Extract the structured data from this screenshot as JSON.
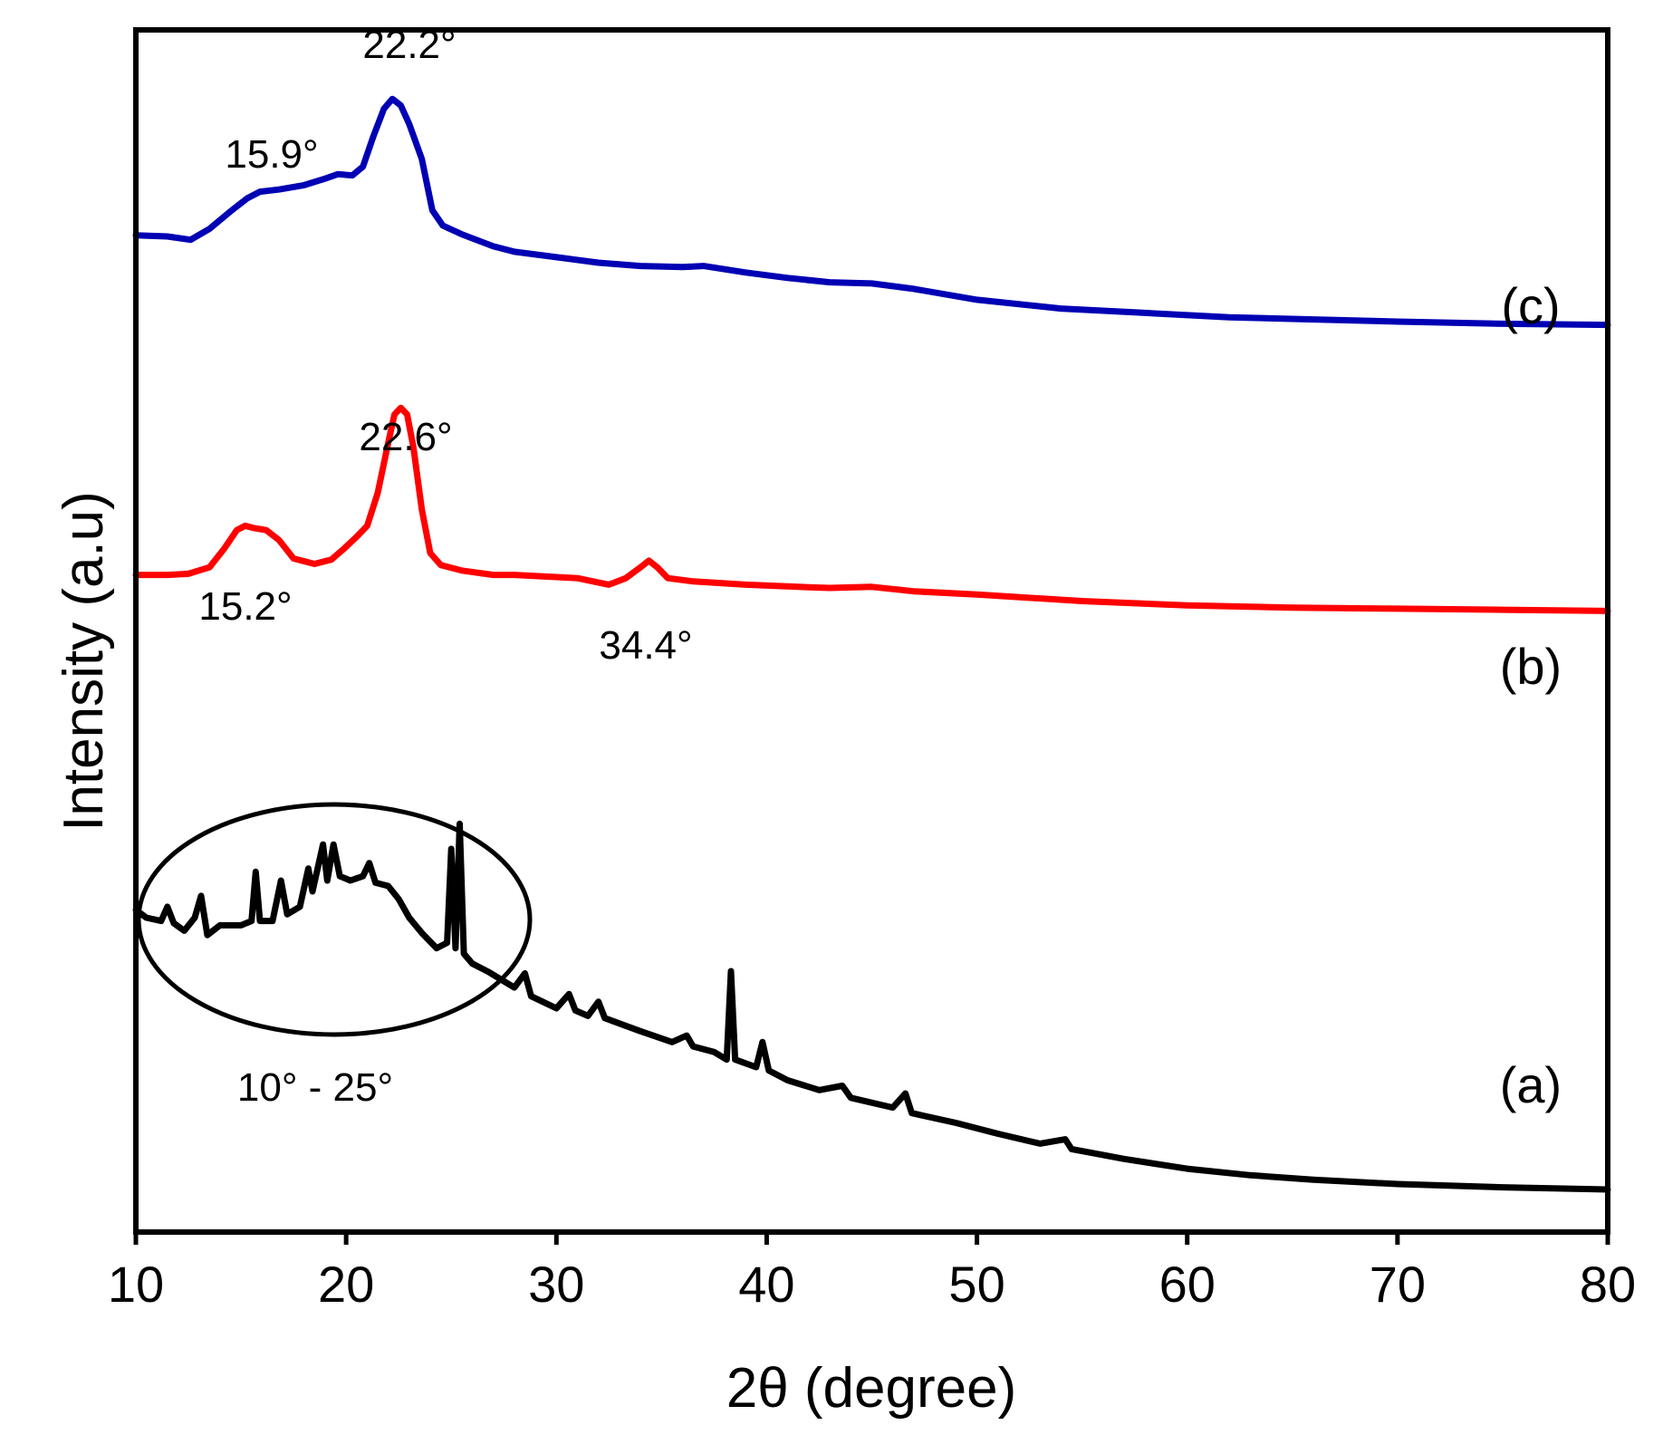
{
  "chart_data": {
    "type": "line",
    "title": "",
    "xlabel": "2θ (degree)",
    "ylabel": "Intensity (a.u)",
    "xlim": [
      10,
      80
    ],
    "ylim": [
      0,
      100
    ],
    "xticks": [
      10,
      20,
      30,
      40,
      50,
      60,
      70,
      80
    ],
    "xtick_labels": [
      "10",
      "20",
      "30",
      "40",
      "50",
      "60",
      "70",
      "80"
    ],
    "yticks_shown": false,
    "grid": false,
    "series": [
      {
        "name": "(a)",
        "color": "#000000",
        "points": [
          [
            10,
            25.6
          ],
          [
            10.5,
            24.9
          ],
          [
            11.2,
            24.6
          ],
          [
            11.5,
            25.9
          ],
          [
            11.8,
            24.4
          ],
          [
            12.3,
            23.7
          ],
          [
            12.8,
            24.9
          ],
          [
            13.1,
            26.9
          ],
          [
            13.4,
            23.3
          ],
          [
            14.0,
            24.2
          ],
          [
            15.0,
            24.2
          ],
          [
            15.5,
            24.6
          ],
          [
            15.7,
            29.1
          ],
          [
            15.9,
            24.6
          ],
          [
            16.5,
            24.6
          ],
          [
            16.9,
            28.3
          ],
          [
            17.2,
            25.2
          ],
          [
            17.8,
            25.9
          ],
          [
            18.2,
            29.4
          ],
          [
            18.4,
            27.3
          ],
          [
            18.9,
            31.6
          ],
          [
            19.1,
            28.3
          ],
          [
            19.4,
            31.6
          ],
          [
            19.7,
            28.7
          ],
          [
            20.2,
            28.3
          ],
          [
            20.8,
            28.7
          ],
          [
            21.1,
            29.9
          ],
          [
            21.4,
            28.1
          ],
          [
            22.0,
            27.8
          ],
          [
            22.5,
            26.6
          ],
          [
            23.0,
            24.9
          ],
          [
            23.6,
            23.5
          ],
          [
            24.3,
            22.1
          ],
          [
            24.8,
            22.6
          ],
          [
            25.0,
            31.2
          ],
          [
            25.2,
            22.1
          ],
          [
            25.4,
            33.5
          ],
          [
            25.6,
            21.6
          ],
          [
            26.0,
            20.7
          ],
          [
            26.8,
            19.9
          ],
          [
            28.0,
            18.5
          ],
          [
            28.5,
            19.8
          ],
          [
            28.8,
            17.7
          ],
          [
            30.0,
            16.6
          ],
          [
            30.6,
            17.9
          ],
          [
            30.9,
            16.4
          ],
          [
            31.5,
            15.9
          ],
          [
            32.0,
            17.2
          ],
          [
            32.3,
            15.7
          ],
          [
            33.0,
            15.2
          ],
          [
            34.0,
            14.5
          ],
          [
            35.5,
            13.5
          ],
          [
            36.2,
            14.1
          ],
          [
            36.5,
            13.1
          ],
          [
            37.5,
            12.6
          ],
          [
            38.1,
            11.9
          ],
          [
            38.3,
            20.0
          ],
          [
            38.5,
            11.9
          ],
          [
            39.5,
            11.2
          ],
          [
            39.8,
            13.5
          ],
          [
            40.1,
            10.9
          ],
          [
            41.0,
            10.0
          ],
          [
            42.5,
            9.1
          ],
          [
            43.6,
            9.5
          ],
          [
            44.0,
            8.4
          ],
          [
            46.0,
            7.5
          ],
          [
            46.6,
            8.8
          ],
          [
            46.9,
            7.0
          ],
          [
            49.0,
            6.1
          ],
          [
            51.0,
            5.1
          ],
          [
            53.0,
            4.2
          ],
          [
            54.2,
            4.6
          ],
          [
            54.5,
            3.7
          ],
          [
            57.0,
            2.8
          ],
          [
            60.0,
            1.9
          ],
          [
            63.0,
            1.3
          ],
          [
            66.0,
            0.9
          ],
          [
            70.0,
            0.5
          ],
          [
            75.0,
            0.2
          ],
          [
            80.0,
            0.0
          ]
        ]
      },
      {
        "name": "(b)",
        "color": "#ff0000",
        "points": [
          [
            10,
            56.3
          ],
          [
            11.5,
            56.3
          ],
          [
            12.5,
            56.4
          ],
          [
            13.5,
            57.0
          ],
          [
            14.2,
            58.7
          ],
          [
            14.8,
            60.4
          ],
          [
            15.2,
            60.8
          ],
          [
            15.6,
            60.6
          ],
          [
            16.2,
            60.4
          ],
          [
            16.8,
            59.5
          ],
          [
            17.5,
            57.8
          ],
          [
            18.5,
            57.3
          ],
          [
            19.3,
            57.7
          ],
          [
            19.9,
            58.7
          ],
          [
            20.5,
            59.8
          ],
          [
            21.0,
            60.8
          ],
          [
            21.5,
            63.8
          ],
          [
            22.0,
            68.4
          ],
          [
            22.3,
            71.0
          ],
          [
            22.6,
            71.6
          ],
          [
            22.9,
            71.0
          ],
          [
            23.2,
            68.0
          ],
          [
            23.6,
            62.3
          ],
          [
            24.0,
            58.3
          ],
          [
            24.5,
            57.2
          ],
          [
            25.5,
            56.7
          ],
          [
            27.0,
            56.3
          ],
          [
            28.0,
            56.3
          ],
          [
            30.0,
            56.1
          ],
          [
            31.0,
            56.0
          ],
          [
            32.5,
            55.4
          ],
          [
            33.3,
            56.0
          ],
          [
            34.0,
            57.0
          ],
          [
            34.4,
            57.6
          ],
          [
            34.8,
            57.0
          ],
          [
            35.3,
            56.0
          ],
          [
            36.5,
            55.7
          ],
          [
            39.0,
            55.4
          ],
          [
            41.5,
            55.2
          ],
          [
            43.0,
            55.1
          ],
          [
            45.0,
            55.2
          ],
          [
            47.0,
            54.8
          ],
          [
            50.0,
            54.5
          ],
          [
            55.0,
            53.9
          ],
          [
            60.0,
            53.5
          ],
          [
            65.0,
            53.3
          ],
          [
            70.0,
            53.2
          ],
          [
            75.0,
            53.1
          ],
          [
            80.0,
            53.0
          ]
        ]
      },
      {
        "name": "(c)",
        "color": "#0000b4",
        "points": [
          [
            10,
            87.4
          ],
          [
            11.5,
            87.3
          ],
          [
            12.6,
            87.0
          ],
          [
            13.5,
            88.0
          ],
          [
            14.5,
            89.6
          ],
          [
            15.3,
            90.8
          ],
          [
            15.9,
            91.4
          ],
          [
            16.8,
            91.6
          ],
          [
            18.0,
            92.0
          ],
          [
            19.0,
            92.6
          ],
          [
            19.6,
            93.0
          ],
          [
            20.3,
            92.9
          ],
          [
            20.8,
            93.7
          ],
          [
            21.3,
            96.5
          ],
          [
            21.8,
            99.0
          ],
          [
            22.2,
            99.9
          ],
          [
            22.6,
            99.3
          ],
          [
            23.0,
            97.6
          ],
          [
            23.6,
            94.4
          ],
          [
            24.1,
            89.7
          ],
          [
            24.6,
            88.3
          ],
          [
            25.5,
            87.5
          ],
          [
            27.0,
            86.4
          ],
          [
            28.0,
            85.9
          ],
          [
            30.0,
            85.4
          ],
          [
            32.0,
            84.9
          ],
          [
            34.0,
            84.6
          ],
          [
            36.0,
            84.5
          ],
          [
            37.0,
            84.6
          ],
          [
            39.0,
            84.0
          ],
          [
            41.0,
            83.5
          ],
          [
            43.0,
            83.1
          ],
          [
            45.0,
            83.0
          ],
          [
            47.0,
            82.5
          ],
          [
            50.0,
            81.5
          ],
          [
            54.0,
            80.7
          ],
          [
            58.0,
            80.3
          ],
          [
            62.0,
            79.9
          ],
          [
            66.0,
            79.7
          ],
          [
            70.0,
            79.5
          ],
          [
            75.0,
            79.3
          ],
          [
            80.0,
            79.2
          ]
        ]
      }
    ],
    "annotations": [
      {
        "text": "22.2°",
        "x": 22.2,
        "y": 99.9,
        "series": "(c)"
      },
      {
        "text": "15.9°",
        "x": 15.9,
        "y": 91.4,
        "series": "(c)"
      },
      {
        "text": "22.6°",
        "x": 22.6,
        "y": 71.6,
        "series": "(b)"
      },
      {
        "text": "15.2°",
        "x": 15.2,
        "y": 60.8,
        "series": "(b)"
      },
      {
        "text": "34.4°",
        "x": 34.4,
        "y": 57.6,
        "series": "(b)"
      },
      {
        "text": "10° - 25°",
        "x": 17.5,
        "y": 26,
        "series": "(a)",
        "note": "ellipse highlight region"
      }
    ],
    "series_labels": [
      "(c)",
      "(b)",
      "(a)"
    ]
  }
}
